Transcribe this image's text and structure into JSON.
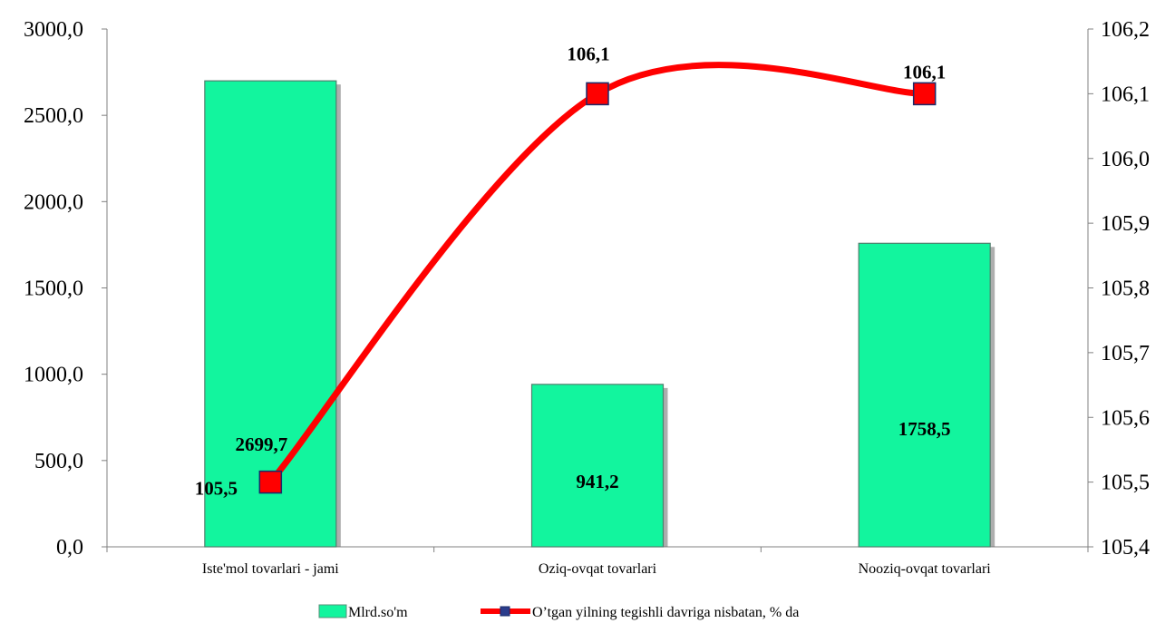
{
  "chart_data": {
    "type": "bar+line",
    "categories": [
      "Iste'mol tovarlari - jami",
      "Oziq-ovqat tovarlari",
      "Nooziq-ovqat tovarlari"
    ],
    "series": [
      {
        "name": "Mlrd.so'm",
        "type": "bar",
        "axis": "left",
        "values": [
          2699.7,
          941.2,
          1758.5
        ],
        "labels": [
          "2699,7",
          "941,2",
          "1758,5"
        ],
        "color": "#12F59E"
      },
      {
        "name": "O’tgan yilning tegishli davriga nisbatan, % da",
        "type": "line",
        "axis": "right",
        "smooth": true,
        "values": [
          105.5,
          106.1,
          106.1
        ],
        "labels": [
          "105,5",
          "106,1",
          "106,1"
        ],
        "color": "#FF0000",
        "marker": "square"
      }
    ],
    "y_left": {
      "ylim": [
        0,
        3000
      ],
      "ticks": [
        "0,0",
        "500,0",
        "1000,0",
        "1500,0",
        "2000,0",
        "2500,0",
        "3000,0"
      ]
    },
    "y_right": {
      "ylim": [
        105.4,
        106.2
      ],
      "ticks": [
        "105,4",
        "105,5",
        "105,6",
        "105,7",
        "105,8",
        "105,9",
        "106,0",
        "106,1",
        "106,2"
      ]
    },
    "legend_position": "bottom",
    "grid": false
  }
}
